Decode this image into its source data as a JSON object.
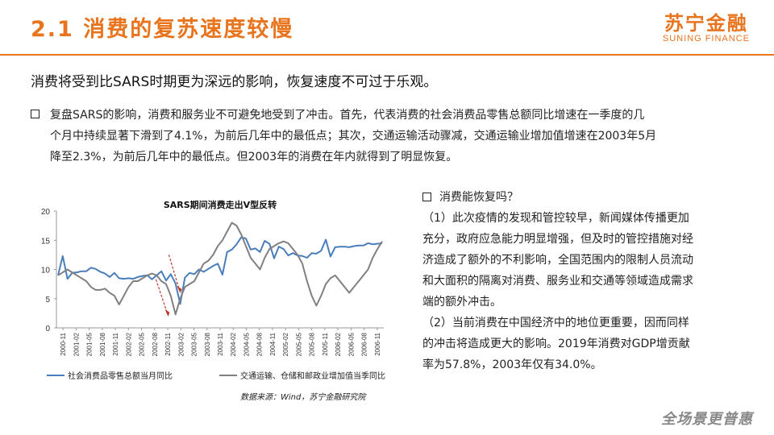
{
  "header": {
    "title": "2.1 消费的复苏速度较慢",
    "logo_cn": "苏宁金融",
    "logo_en": "SUNING FINANCE"
  },
  "subtitle": "消费将受到比SARS时期更为深远的影响，恢复速度不可过于乐观。",
  "paragraph": {
    "lines": [
      "复盘SARS的影响，消费和服务业不可避免地受到了冲击。首先，代表消费的社会消费品零售总额同比增速在一季度的几",
      "个月中持续显著下滑到了4.1%，为前后几年中的最低点；其次，交通运输活动骤减，交通运输业增加值增速在2003年5月",
      "降至2.3%，为前后几年中的最低点。但2003年的消费在年内就得到了明显恢复。"
    ]
  },
  "right_col": {
    "heading": "消费能恢复吗？",
    "lines": [
      "（1）此次疫情的发现和管控较早，新闻媒体传播更加",
      "充分，政府应急能力明显增强，但及时的管控措施对经",
      "济造成了额外的不利影响，全国范围内的限制人员流动",
      "和大面积的隔离对消费、服务业和交通等领域造成需求",
      "端的额外冲击。",
      "（2）当前消费在中国经济中的地位更重要，因而同样",
      "的冲击将造成更大的影响。2019年消费对GDP增贡献",
      "率为57.8%，2003年仅有34.0%。"
    ]
  },
  "footer": {
    "brand": "全场景更普惠"
  },
  "colors": {
    "accent": "#E8741E",
    "series1": "#4A7EBB",
    "series2": "#808080",
    "arrow": "#C0392B"
  },
  "chart_data": {
    "type": "line",
    "title": "SARS期间消费走出V型反转",
    "source": "数据来源：Wind，苏宁金融研究院",
    "ylim": [
      0,
      20
    ],
    "yticks": [
      "0",
      "5",
      "10",
      "15",
      "20"
    ],
    "xticks": [
      "2000-11",
      "2001-02",
      "2001-05",
      "2001-08",
      "2001-11",
      "2002-02",
      "2002-05",
      "2002-08",
      "2002-11",
      "2003-02",
      "2003-05",
      "2003-08",
      "2003-11",
      "2004-02",
      "2004-05",
      "2004-08",
      "2004-11",
      "2005-02",
      "2005-05",
      "2005-08",
      "2005-11",
      "2006-02",
      "2006-05",
      "2006-08",
      "2006-11"
    ],
    "series": [
      {
        "name": "社会消费品零售总额当月同比",
        "values": [
          9.0,
          12.3,
          8.4,
          9.4,
          9.5,
          9.7,
          9.7,
          10.3,
          10.1,
          9.6,
          9.3,
          8.7,
          9.4,
          8.5,
          8.4,
          8.5,
          8.4,
          8.7,
          8.9,
          9.0,
          8.3,
          9.0,
          9.7,
          8.1,
          9.2,
          7.6,
          4.1,
          8.6,
          9.4,
          9.2,
          10.0,
          9.6,
          10.1,
          10.6,
          11.0,
          9.1,
          13.0,
          13.4,
          14.3,
          15.5,
          15.3,
          13.4,
          13.6,
          13.0,
          14.9,
          14.4,
          11.9,
          13.9,
          13.5,
          12.4,
          12.8,
          12.4,
          12.3,
          12.0,
          12.8,
          12.7,
          13.2,
          15.1,
          12.2,
          13.8,
          13.9,
          13.9,
          13.8,
          14.0,
          14.1,
          14.1,
          14.5,
          14.3,
          14.4,
          14.5
        ]
      },
      {
        "name": "交通运输、仓储和邮政业增加值当季同比",
        "values": [
          9.0,
          9.5,
          10.0,
          9.5,
          9.0,
          8.5,
          8.0,
          7.0,
          6.5,
          6.5,
          6.7,
          6.0,
          5.5,
          4.0,
          5.5,
          7.0,
          8.0,
          8.0,
          8.5,
          9.0,
          9.3,
          9.0,
          8.0,
          7.5,
          5.5,
          2.3,
          5.0,
          7.0,
          7.5,
          8.0,
          9.5,
          11.0,
          11.5,
          12.5,
          14.0,
          15.0,
          16.5,
          18.0,
          17.5,
          16.0,
          14.0,
          12.0,
          11.0,
          10.0,
          12.0,
          13.5,
          14.0,
          14.5,
          14.8,
          14.5,
          13.5,
          12.5,
          11.0,
          8.0,
          5.5,
          3.8,
          5.5,
          7.5,
          8.5,
          9.0,
          8.0,
          7.0,
          6.0,
          7.0,
          8.0,
          9.0,
          10.0,
          12.0,
          13.5,
          14.8
        ]
      }
    ]
  }
}
